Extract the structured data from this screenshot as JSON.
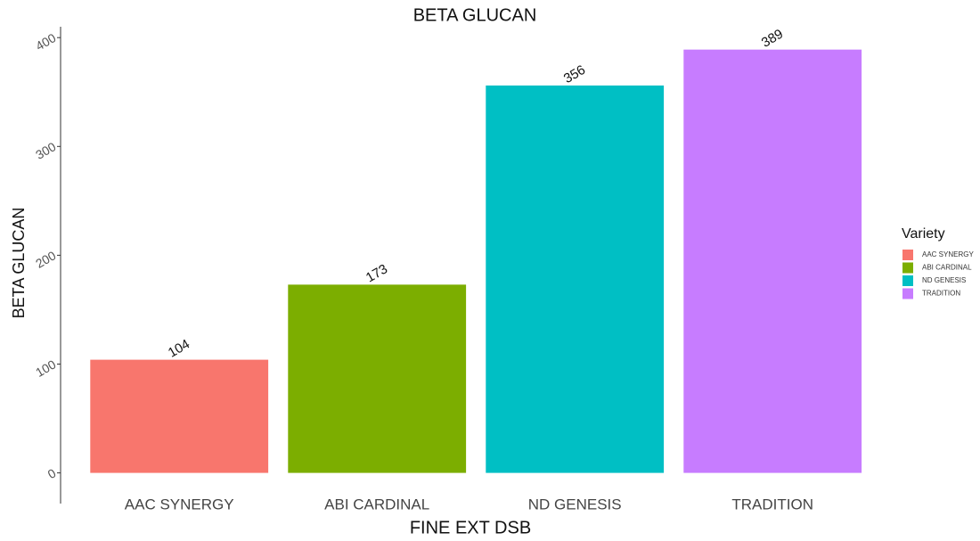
{
  "chart_data": {
    "type": "bar",
    "title": "BETA GLUCAN",
    "x_label": "FINE EXT DSB",
    "y_label": "BETA GLUCAN",
    "categories": [
      "AAC SYNERGY",
      "ABI CARDINAL",
      "ND GENESIS",
      "TRADITION"
    ],
    "values": [
      104,
      173,
      356,
      389
    ],
    "colors": [
      "#F8766D",
      "#7CAE00",
      "#00BFC4",
      "#C77CFF"
    ],
    "ylim": [
      -20,
      410
    ],
    "yticks": [
      0,
      100,
      200,
      300,
      400
    ],
    "grid": false,
    "legend_title": "Variety",
    "legend_position": "right"
  }
}
